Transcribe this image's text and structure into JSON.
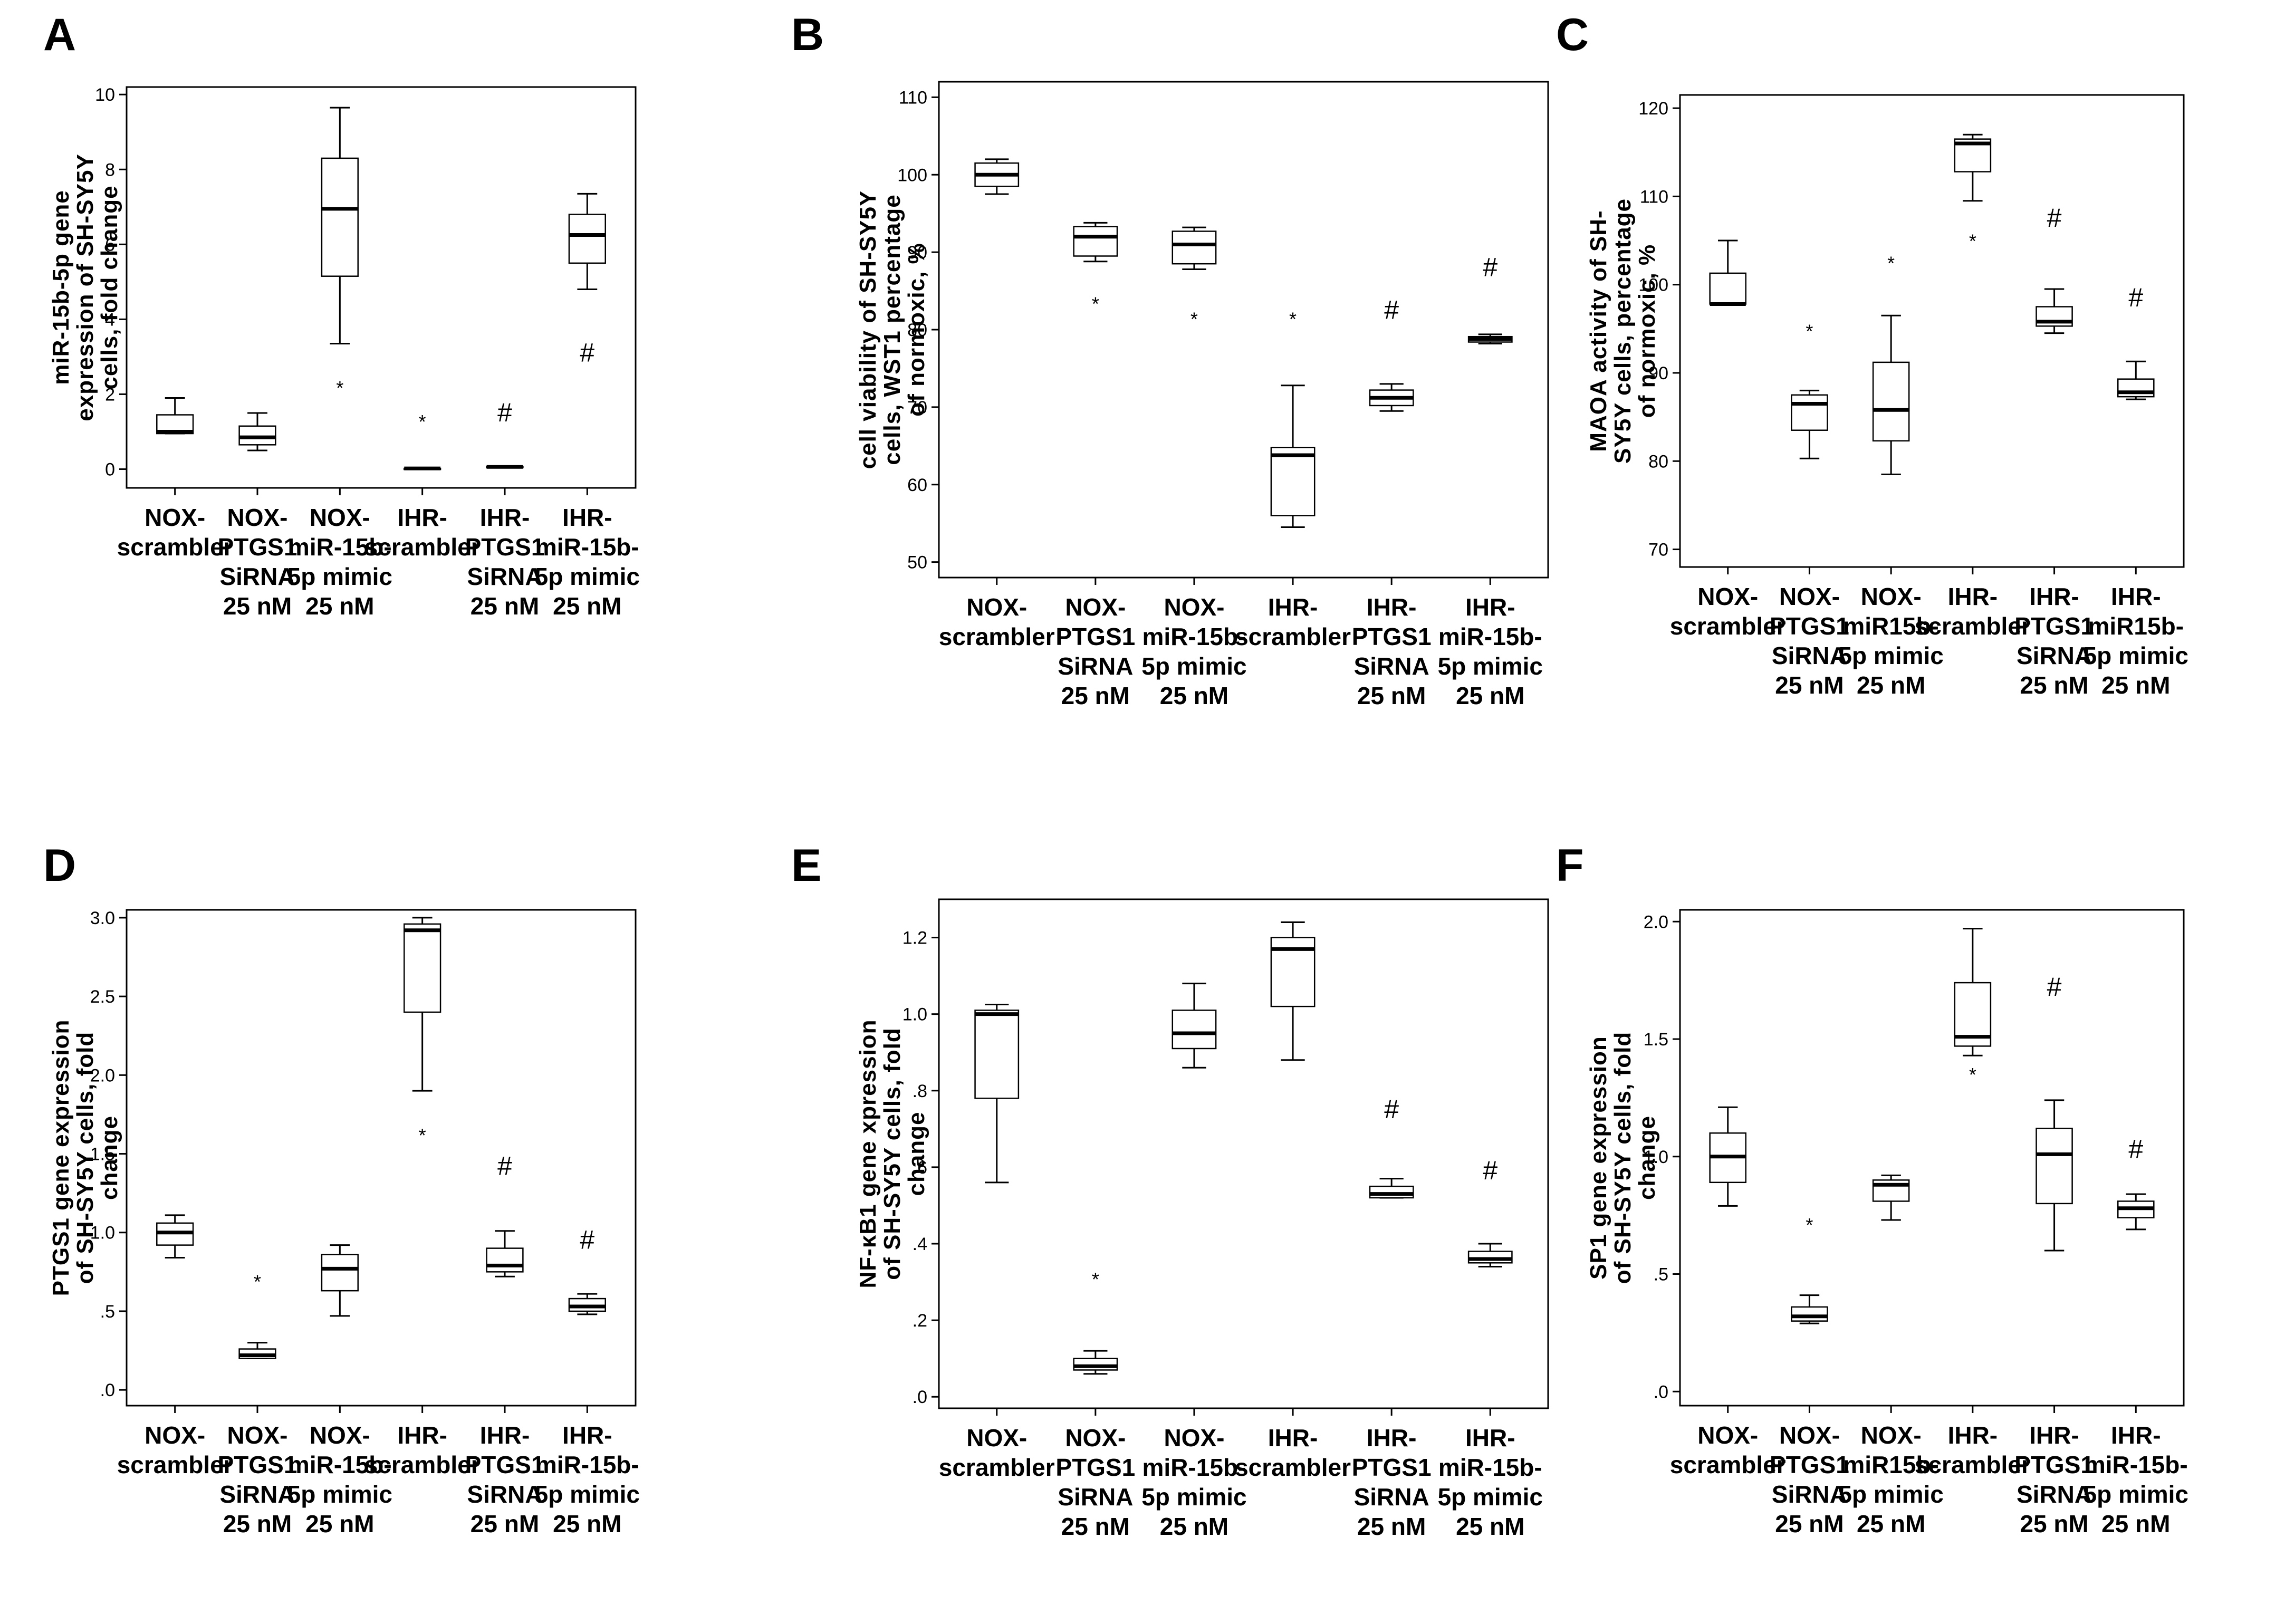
{
  "chart_data": [
    {
      "panel": "A",
      "type": "box",
      "ylabel": [
        "miR-15b-5p gene",
        "expression of SH-SY5Y",
        "cells, fold change"
      ],
      "ylim": [
        -0.5,
        10.2
      ],
      "yticks": [
        {
          "v": 0,
          "label": "0"
        },
        {
          "v": 2,
          "label": "2"
        },
        {
          "v": 4,
          "label": "4"
        },
        {
          "v": 6,
          "label": "6"
        },
        {
          "v": 8,
          "label": "8"
        },
        {
          "v": 10,
          "label": "10"
        }
      ],
      "categories": [
        [
          "NOX-",
          "scrambler"
        ],
        [
          "NOX-",
          "PTGS1",
          "SiRNA",
          "25 nM"
        ],
        [
          "NOX-",
          "miR-15b-",
          "5p mimic",
          "25 nM"
        ],
        [
          "IHR-",
          "scrambler"
        ],
        [
          "IHR-",
          "PTGS1",
          "SiRNA",
          "25 nM"
        ],
        [
          "IHR-",
          "miR-15b-",
          "5p mimic",
          "25 nM"
        ]
      ],
      "boxes": [
        {
          "min": 0.95,
          "q1": 0.95,
          "median": 1.0,
          "q3": 1.45,
          "max": 1.9
        },
        {
          "min": 0.5,
          "q1": 0.65,
          "median": 0.85,
          "q3": 1.15,
          "max": 1.5
        },
        {
          "min": 3.35,
          "q1": 5.15,
          "median": 6.95,
          "q3": 8.3,
          "max": 9.65
        },
        {
          "min": 0.02,
          "q1": 0.02,
          "median": 0.02,
          "q3": 0.02,
          "max": 0.02
        },
        {
          "min": 0.05,
          "q1": 0.05,
          "median": 0.06,
          "q3": 0.07,
          "max": 0.08
        },
        {
          "min": 4.8,
          "q1": 5.5,
          "median": 6.25,
          "q3": 6.8,
          "max": 7.35
        }
      ],
      "markers": [
        {
          "cat": 2,
          "v": 2.3,
          "sym": "*"
        },
        {
          "cat": 3,
          "v": 1.4,
          "sym": "*"
        },
        {
          "cat": 4,
          "v": 1.5,
          "sym": "#"
        },
        {
          "cat": 5,
          "v": 3.1,
          "sym": "#"
        }
      ]
    },
    {
      "panel": "B",
      "type": "box",
      "ylabel": [
        "cell viability of SH-SY5Y",
        "cells, WST1 percentage",
        "of normoxic, %"
      ],
      "ylim": [
        48,
        112
      ],
      "yticks": [
        {
          "v": 50,
          "label": "50"
        },
        {
          "v": 60,
          "label": "60"
        },
        {
          "v": 70,
          "label": "70"
        },
        {
          "v": 80,
          "label": "80"
        },
        {
          "v": 90,
          "label": "90"
        },
        {
          "v": 100,
          "label": "100"
        },
        {
          "v": 110,
          "label": "110"
        }
      ],
      "categories": [
        [
          "NOX-",
          "scrambler"
        ],
        [
          "NOX-",
          "PTGS1",
          "SiRNA",
          "25 nM"
        ],
        [
          "NOX-",
          "miR-15b-",
          "5p mimic",
          "25 nM"
        ],
        [
          "IHR-",
          "scrambler"
        ],
        [
          "IHR-",
          "PTGS1",
          "SiRNA",
          "25 nM"
        ],
        [
          "IHR-",
          "miR-15b-",
          "5p mimic",
          "25 nM"
        ]
      ],
      "boxes": [
        {
          "min": 97.5,
          "q1": 98.5,
          "median": 100,
          "q3": 101.5,
          "max": 102
        },
        {
          "min": 88.8,
          "q1": 89.5,
          "median": 92,
          "q3": 93.3,
          "max": 93.8
        },
        {
          "min": 87.8,
          "q1": 88.5,
          "median": 91,
          "q3": 92.7,
          "max": 93.2
        },
        {
          "min": 54.5,
          "q1": 56,
          "median": 63.8,
          "q3": 64.8,
          "max": 72.8
        },
        {
          "min": 69.5,
          "q1": 70.2,
          "median": 71.2,
          "q3": 72.2,
          "max": 73
        },
        {
          "min": 78.2,
          "q1": 78.4,
          "median": 78.8,
          "q3": 79.1,
          "max": 79.4
        }
      ],
      "markers": [
        {
          "cat": 1,
          "v": 84,
          "sym": "*"
        },
        {
          "cat": 2,
          "v": 82,
          "sym": "*"
        },
        {
          "cat": 3,
          "v": 82,
          "sym": "*"
        },
        {
          "cat": 4,
          "v": 82.5,
          "sym": "#"
        },
        {
          "cat": 5,
          "v": 88,
          "sym": "#"
        }
      ]
    },
    {
      "panel": "C",
      "type": "box",
      "ylabel": [
        "MAOA activity of SH-",
        "SY5Y cells, percentage",
        "of normoxic, %"
      ],
      "ylim": [
        68,
        121.5
      ],
      "yticks": [
        {
          "v": 70,
          "label": "70"
        },
        {
          "v": 80,
          "label": "80"
        },
        {
          "v": 90,
          "label": "90"
        },
        {
          "v": 100,
          "label": "100"
        },
        {
          "v": 110,
          "label": "110"
        },
        {
          "v": 120,
          "label": "120"
        }
      ],
      "categories": [
        [
          "NOX-",
          "scrambler"
        ],
        [
          "NOX-",
          "PTGS1",
          "SiRNA",
          "25 nM"
        ],
        [
          "NOX-",
          "miR15b-",
          "5p mimic",
          "25 nM"
        ],
        [
          "IHR-",
          "scrambler"
        ],
        [
          "IHR-",
          "PTGS1",
          "SiRNA",
          "25 nM"
        ],
        [
          "IHR-",
          "miR15b-",
          "5p mimic",
          "25 nM"
        ]
      ],
      "boxes": [
        {
          "min": 97.8,
          "q1": 97.8,
          "median": 97.8,
          "q3": 101.3,
          "max": 105
        },
        {
          "min": 80.3,
          "q1": 83.5,
          "median": 86.5,
          "q3": 87.5,
          "max": 88
        },
        {
          "min": 78.5,
          "q1": 82.3,
          "median": 85.8,
          "q3": 91.2,
          "max": 96.5
        },
        {
          "min": 109.5,
          "q1": 112.8,
          "median": 116,
          "q3": 116.5,
          "max": 117
        },
        {
          "min": 94.5,
          "q1": 95.3,
          "median": 95.8,
          "q3": 97.5,
          "max": 99.5
        },
        {
          "min": 87,
          "q1": 87.3,
          "median": 87.8,
          "q3": 89.3,
          "max": 91.3
        }
      ],
      "markers": [
        {
          "cat": 1,
          "v": 95.3,
          "sym": "*"
        },
        {
          "cat": 2,
          "v": 103,
          "sym": "*"
        },
        {
          "cat": 3,
          "v": 105.5,
          "sym": "*"
        },
        {
          "cat": 4,
          "v": 107.5,
          "sym": "#"
        },
        {
          "cat": 5,
          "v": 98.5,
          "sym": "#"
        }
      ]
    },
    {
      "panel": "D",
      "type": "box",
      "ylabel": [
        "PTGS1 gene expression",
        "of SH-SY5Y cells, fold",
        "change"
      ],
      "ylim": [
        -0.1,
        3.05
      ],
      "yticks": [
        {
          "v": 0,
          "label": ".0"
        },
        {
          "v": 0.5,
          "label": ".5"
        },
        {
          "v": 1,
          "label": "1.0"
        },
        {
          "v": 1.5,
          "label": "1.5"
        },
        {
          "v": 2,
          "label": "2.0"
        },
        {
          "v": 2.5,
          "label": "2.5"
        },
        {
          "v": 3,
          "label": "3.0"
        }
      ],
      "categories": [
        [
          "NOX-",
          "scrambler"
        ],
        [
          "NOX-",
          "PTGS1",
          "SiRNA",
          "25 nM"
        ],
        [
          "NOX-",
          "miR-15b-",
          "5p mimic",
          "25 nM"
        ],
        [
          "IHR-",
          "scrambler"
        ],
        [
          "IHR-",
          "PTGS1",
          "SiRNA",
          "25 nM"
        ],
        [
          "IHR-",
          "miR-15b-",
          "5p mimic",
          "25 nM"
        ]
      ],
      "boxes": [
        {
          "min": 0.84,
          "q1": 0.92,
          "median": 1.0,
          "q3": 1.06,
          "max": 1.11
        },
        {
          "min": 0.2,
          "q1": 0.2,
          "median": 0.22,
          "q3": 0.26,
          "max": 0.3
        },
        {
          "min": 0.47,
          "q1": 0.63,
          "median": 0.77,
          "q3": 0.86,
          "max": 0.92
        },
        {
          "min": 1.9,
          "q1": 2.4,
          "median": 2.92,
          "q3": 2.96,
          "max": 3.0
        },
        {
          "min": 0.72,
          "q1": 0.75,
          "median": 0.79,
          "q3": 0.9,
          "max": 1.01
        },
        {
          "min": 0.48,
          "q1": 0.5,
          "median": 0.53,
          "q3": 0.58,
          "max": 0.61
        }
      ],
      "markers": [
        {
          "cat": 1,
          "v": 0.72,
          "sym": "*"
        },
        {
          "cat": 3,
          "v": 1.65,
          "sym": "*"
        },
        {
          "cat": 4,
          "v": 1.42,
          "sym": "#"
        },
        {
          "cat": 5,
          "v": 0.95,
          "sym": "#"
        }
      ]
    },
    {
      "panel": "E",
      "type": "box",
      "ylabel": [
        "NF-κB1 gene xpression",
        "of SH-SY5Y cells, fold",
        "change"
      ],
      "ylim": [
        -0.03,
        1.3
      ],
      "yticks": [
        {
          "v": 0,
          "label": ".0"
        },
        {
          "v": 0.2,
          "label": ".2"
        },
        {
          "v": 0.4,
          "label": ".4"
        },
        {
          "v": 0.6,
          "label": ".6"
        },
        {
          "v": 0.8,
          "label": ".8"
        },
        {
          "v": 1.0,
          "label": "1.0"
        },
        {
          "v": 1.2,
          "label": "1.2"
        }
      ],
      "categories": [
        [
          "NOX-",
          "scrambler"
        ],
        [
          "NOX-",
          "PTGS1",
          "SiRNA",
          "25 nM"
        ],
        [
          "NOX-",
          "miR-15b-",
          "5p mimic",
          "25 nM"
        ],
        [
          "IHR-",
          "scrambler"
        ],
        [
          "IHR-",
          "PTGS1",
          "SiRNA",
          "25 nM"
        ],
        [
          "IHR-",
          "miR-15b-",
          "5p mimic",
          "25 nM"
        ]
      ],
      "boxes": [
        {
          "min": 0.56,
          "q1": 0.78,
          "median": 1.0,
          "q3": 1.01,
          "max": 1.025
        },
        {
          "min": 0.06,
          "q1": 0.07,
          "median": 0.08,
          "q3": 0.1,
          "max": 0.12
        },
        {
          "min": 0.86,
          "q1": 0.91,
          "median": 0.95,
          "q3": 1.01,
          "max": 1.08
        },
        {
          "min": 0.88,
          "q1": 1.02,
          "median": 1.17,
          "q3": 1.2,
          "max": 1.24
        },
        {
          "min": 0.52,
          "q1": 0.52,
          "median": 0.53,
          "q3": 0.55,
          "max": 0.57
        },
        {
          "min": 0.34,
          "q1": 0.35,
          "median": 0.36,
          "q3": 0.38,
          "max": 0.4
        }
      ],
      "markers": [
        {
          "cat": 1,
          "v": 0.32,
          "sym": "*"
        },
        {
          "cat": 4,
          "v": 0.75,
          "sym": "#"
        },
        {
          "cat": 5,
          "v": 0.59,
          "sym": "#"
        }
      ]
    },
    {
      "panel": "F",
      "type": "box",
      "ylabel": [
        "SP1 gene expression",
        "of SH-SY5Y cells, fold",
        "change"
      ],
      "ylim": [
        -0.06,
        2.05
      ],
      "yticks": [
        {
          "v": 0,
          "label": ".0"
        },
        {
          "v": 0.5,
          "label": ".5"
        },
        {
          "v": 1,
          "label": "1.0"
        },
        {
          "v": 1.5,
          "label": "1.5"
        },
        {
          "v": 2,
          "label": "2.0"
        }
      ],
      "categories": [
        [
          "NOX-",
          "scrambler"
        ],
        [
          "NOX-",
          "PTGS1",
          "SiRNA",
          "25 nM"
        ],
        [
          "NOX-",
          "miR15b-",
          "5p mimic",
          "25 nM"
        ],
        [
          "IHR-",
          "scrambler"
        ],
        [
          "IHR-",
          "PTGS1",
          "SiRNA",
          "25 nM"
        ],
        [
          "IHR-",
          "miR-15b-",
          "5p mimic",
          "25 nM"
        ]
      ],
      "boxes": [
        {
          "min": 0.79,
          "q1": 0.89,
          "median": 1.0,
          "q3": 1.1,
          "max": 1.21
        },
        {
          "min": 0.29,
          "q1": 0.3,
          "median": 0.32,
          "q3": 0.36,
          "max": 0.41
        },
        {
          "min": 0.73,
          "q1": 0.81,
          "median": 0.88,
          "q3": 0.9,
          "max": 0.92
        },
        {
          "min": 1.43,
          "q1": 1.47,
          "median": 1.51,
          "q3": 1.74,
          "max": 1.97
        },
        {
          "min": 0.6,
          "q1": 0.8,
          "median": 1.01,
          "q3": 1.12,
          "max": 1.24
        },
        {
          "min": 0.69,
          "q1": 0.74,
          "median": 0.78,
          "q3": 0.81,
          "max": 0.84
        }
      ],
      "markers": [
        {
          "cat": 1,
          "v": 0.73,
          "sym": "*"
        },
        {
          "cat": 3,
          "v": 1.37,
          "sym": "*"
        },
        {
          "cat": 4,
          "v": 1.72,
          "sym": "#"
        },
        {
          "cat": 5,
          "v": 1.03,
          "sym": "#"
        }
      ]
    }
  ]
}
